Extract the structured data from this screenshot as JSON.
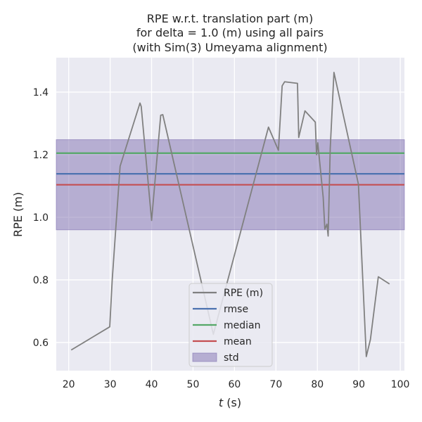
{
  "chart_data": {
    "type": "line",
    "title_lines": [
      "RPE w.r.t. translation part (m)",
      "for delta = 1.0 (m) using all pairs",
      "(with Sim(3) Umeyama alignment)"
    ],
    "xlabel_italic": "t",
    "xlabel_rest": " (s)",
    "ylabel": "RPE (m)",
    "xlim": [
      17,
      101
    ],
    "ylim": [
      0.51,
      1.51
    ],
    "x_ticks": [
      20,
      30,
      40,
      50,
      60,
      70,
      80,
      90,
      100
    ],
    "y_ticks": [
      0.6,
      0.8,
      1.0,
      1.2,
      1.4
    ],
    "y_tick_labels": [
      "0.6",
      "0.8",
      "1.0",
      "1.2",
      "1.4"
    ],
    "grid": true,
    "legend_position": "lower-center",
    "series": [
      {
        "name": "RPE (m)",
        "color": "#808080",
        "x": [
          20.6,
          29.9,
          30.5,
          32.4,
          37.2,
          37.5,
          40.0,
          42.2,
          42.7,
          54.9,
          68.2,
          70.6,
          71.5,
          72.1,
          75.2,
          75.5,
          77.0,
          79.5,
          79.8,
          80.1,
          81.4,
          81.8,
          82.3,
          82.6,
          83.1,
          84.0,
          89.9,
          91.8,
          92.8,
          94.7,
          97.4
        ],
        "y": [
          0.576,
          0.65,
          0.8,
          1.163,
          1.365,
          1.354,
          0.99,
          1.326,
          1.328,
          0.626,
          1.288,
          1.214,
          1.42,
          1.433,
          1.428,
          1.255,
          1.34,
          1.304,
          1.2,
          1.238,
          1.064,
          0.962,
          0.978,
          0.94,
          1.22,
          1.463,
          1.106,
          0.555,
          0.61,
          0.81,
          0.787
        ]
      }
    ],
    "stats": {
      "rmse": {
        "name": "rmse",
        "value": 1.139,
        "color": "#4c72b0"
      },
      "median": {
        "name": "median",
        "value": 1.205,
        "color": "#55a868"
      },
      "mean": {
        "name": "mean",
        "value": 1.104,
        "color": "#c44e52"
      },
      "std": {
        "name": "std",
        "lower": 0.96,
        "upper": 1.248,
        "color": "#8172b2"
      }
    },
    "legend": [
      "RPE (m)",
      "rmse",
      "median",
      "mean",
      "std"
    ],
    "colors": {
      "background": "#eaeaf2",
      "grid": "#ffffff",
      "text": "#262626"
    }
  }
}
